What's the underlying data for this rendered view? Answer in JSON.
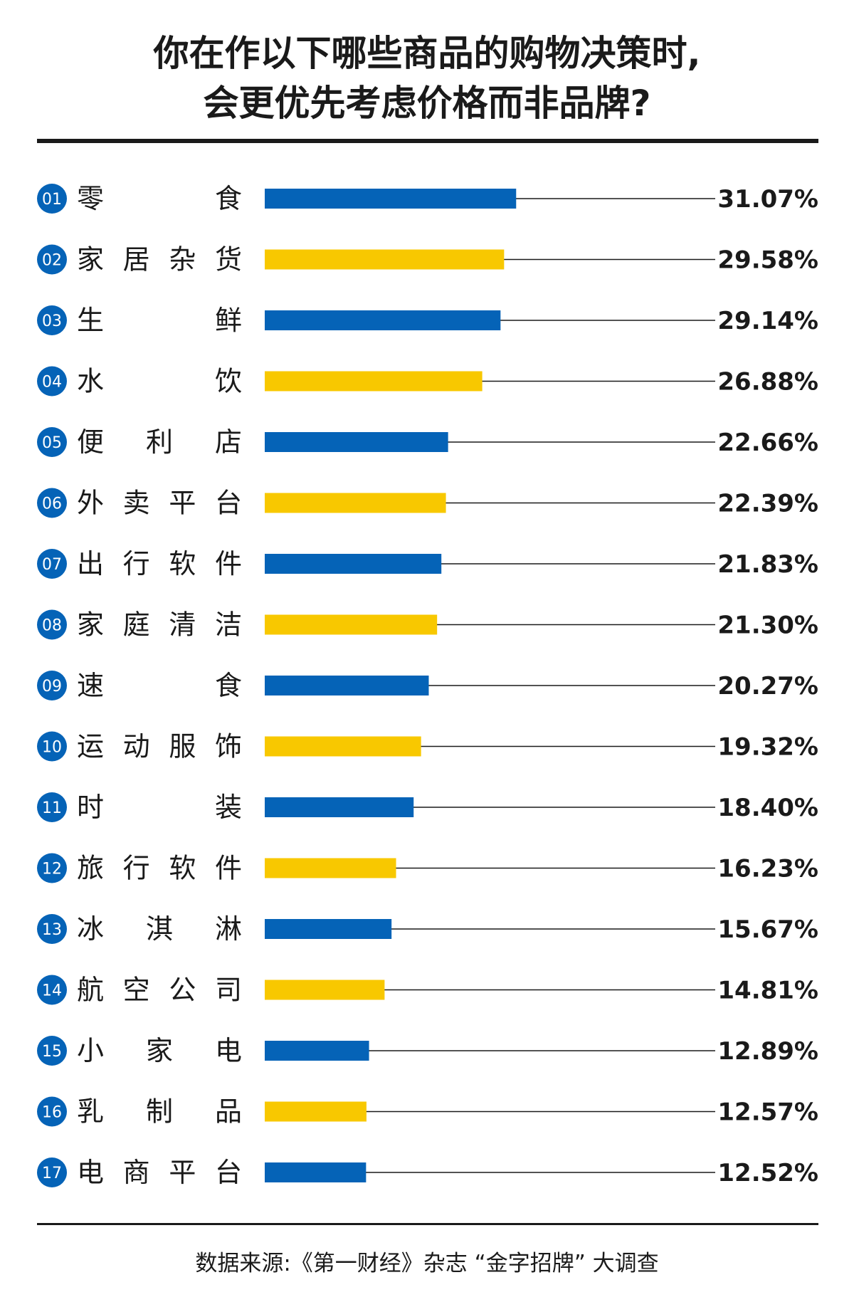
{
  "title_lines": [
    "你在作以下哪些商品的购物决策时,",
    "会更优先考虑价格而非品牌?"
  ],
  "source": "数据来源:《第一财经》杂志 “金字招牌” 大调查",
  "colors": {
    "blue": "#0563b7",
    "yellow": "#f8c800",
    "text": "#1a1a1a",
    "line": "#1a1a1a"
  },
  "chart_data": {
    "type": "bar",
    "orientation": "horizontal",
    "unit": "%",
    "ranks": [
      "01",
      "02",
      "03",
      "04",
      "05",
      "06",
      "07",
      "08",
      "09",
      "10",
      "11",
      "12",
      "13",
      "14",
      "15",
      "16",
      "17"
    ],
    "categories": [
      "零食",
      "家居杂货",
      "生鲜",
      "水饮",
      "便利店",
      "外卖平台",
      "出行软件",
      "家庭清洁",
      "速食",
      "运动服饰",
      "时装",
      "旅行软件",
      "冰淇淋",
      "航空公司",
      "小家电",
      "乳制品",
      "电商平台"
    ],
    "values": [
      31.07,
      29.58,
      29.14,
      26.88,
      22.66,
      22.39,
      21.83,
      21.3,
      20.27,
      19.32,
      18.4,
      16.23,
      15.67,
      14.81,
      12.89,
      12.57,
      12.52
    ],
    "value_labels": [
      "31.07%",
      "29.58%",
      "29.14%",
      "26.88%",
      "22.66%",
      "22.39%",
      "21.83%",
      "21.30%",
      "20.27%",
      "19.32%",
      "18.40%",
      "16.23%",
      "15.67%",
      "14.81%",
      "12.89%",
      "12.57%",
      "12.52%"
    ],
    "bar_colors": [
      "blue",
      "yellow",
      "blue",
      "yellow",
      "blue",
      "yellow",
      "blue",
      "yellow",
      "blue",
      "yellow",
      "blue",
      "yellow",
      "blue",
      "yellow",
      "blue",
      "yellow",
      "blue"
    ],
    "sort": "descending"
  }
}
